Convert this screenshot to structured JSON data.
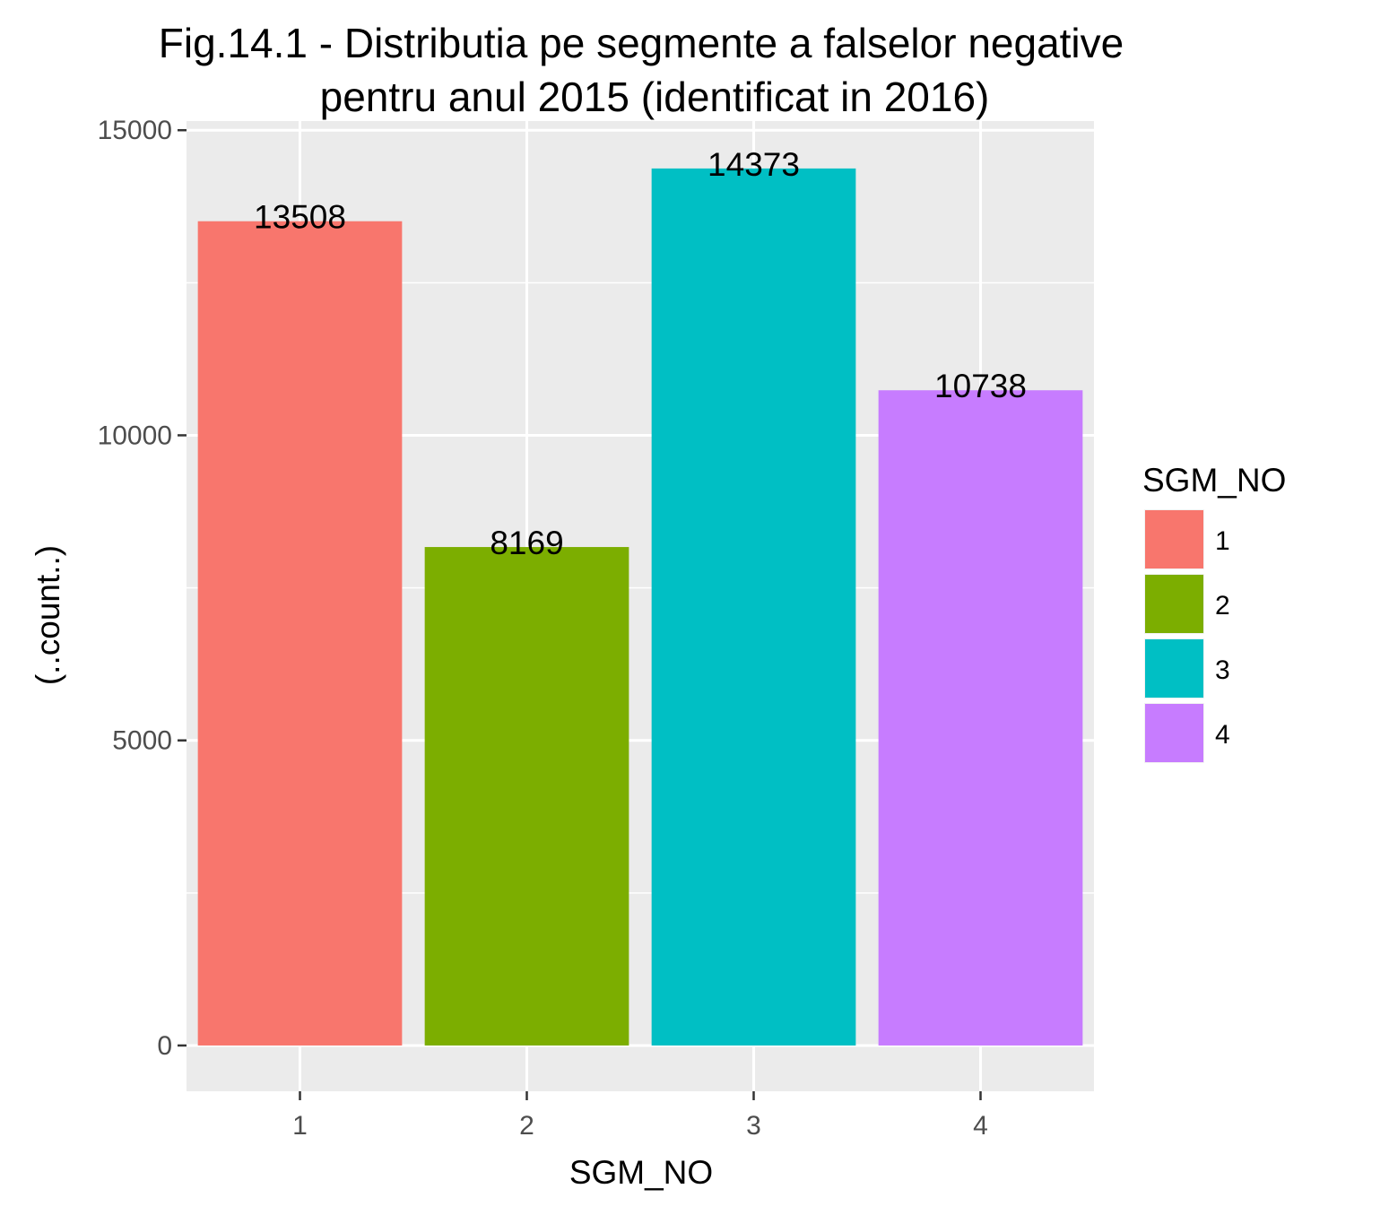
{
  "chart_data": {
    "type": "bar",
    "title_lines": [
      "Fig.14.1 - Distributia pe segmente a falselor negative",
      "pentru anul 2015 (identificat in 2016)"
    ],
    "xlabel": "SGM_NO",
    "ylabel": "(..count..)",
    "categories": [
      "1",
      "2",
      "3",
      "4"
    ],
    "values": [
      13508,
      8169,
      14373,
      10738
    ],
    "value_labels": [
      "13508",
      "8169",
      "14373",
      "10738"
    ],
    "ylim": [
      -750,
      15150
    ],
    "yticks": [
      0,
      5000,
      10000,
      15000
    ],
    "ytick_labels": [
      "0",
      "5000",
      "10000",
      "15000"
    ],
    "y_minor_gridlines": [
      2500,
      7500,
      12500
    ],
    "grid": true,
    "legend": {
      "title": "SGM_NO",
      "placement": "right",
      "entries": [
        "1",
        "2",
        "3",
        "4"
      ]
    },
    "colors": [
      "#F8766D",
      "#7CAE00",
      "#00BFC4",
      "#C77CFF"
    ],
    "panel_background": "#EBEBEB"
  }
}
